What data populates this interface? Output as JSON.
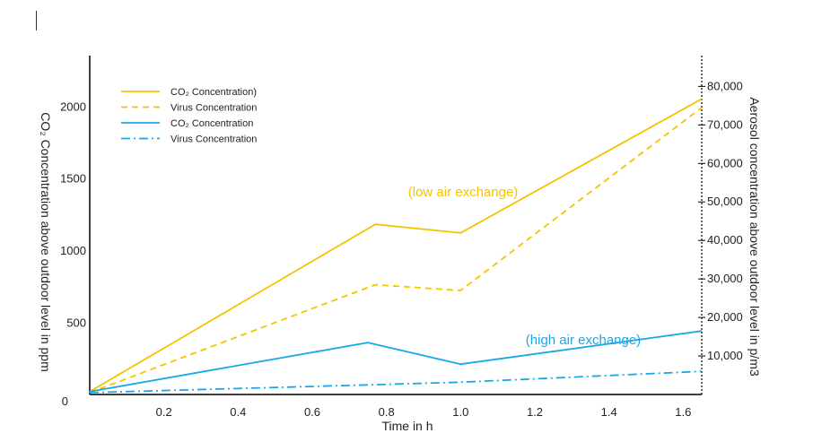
{
  "chart_data": {
    "type": "line",
    "x_ticks": [
      "0.2",
      "0.4",
      "0.6",
      "0.8",
      "1.0",
      "1.2",
      "1.4",
      "1.6"
    ],
    "x_tick_values": [
      0.2,
      0.4,
      0.6,
      0.8,
      1.0,
      1.2,
      1.4,
      1.6
    ],
    "y_left_ticks": [
      "0",
      "500",
      "1000",
      "1500",
      "2000"
    ],
    "y_left_tick_values": [
      0,
      500,
      1000,
      1500,
      2000
    ],
    "y_right_ticks": [
      "10,000",
      "20,000",
      "30,000",
      "40,000",
      "50,000",
      "60,000",
      "70,000",
      "80,000"
    ],
    "y_right_tick_values": [
      10000,
      20000,
      30000,
      40000,
      50000,
      60000,
      70000,
      80000
    ],
    "xlabel": "Time in h",
    "ylabel_left": "CO₂ Concentration above  outdoor level in ppm",
    "ylabel_right": "Aerosol concentration above  outdoor level in p/m3",
    "xlim": [
      0,
      1.65
    ],
    "ylim_left": [
      0,
      2350
    ],
    "ylim_right": [
      0,
      88000
    ],
    "grid": false,
    "legend_position": "top-left",
    "series": [
      {
        "name": "CO₂ Concentration)",
        "axis": "left",
        "style": "solid",
        "color": "#f5c400",
        "x": [
          0,
          0.77,
          1.0,
          1.65
        ],
        "y": [
          20,
          1180,
          1120,
          2050
        ]
      },
      {
        "name": "Virus Concentration",
        "axis": "right",
        "style": "dashed",
        "color": "#f5c400",
        "x": [
          0,
          0.77,
          1.0,
          1.65
        ],
        "y": [
          500,
          28500,
          27000,
          74500
        ]
      },
      {
        "name": "CO₂ Concentration",
        "axis": "left",
        "style": "solid",
        "color": "#1aa7e8",
        "x": [
          0,
          0.75,
          1.0,
          1.65
        ],
        "y": [
          20,
          360,
          210,
          440
        ]
      },
      {
        "name": "Virus Concentration",
        "axis": "right",
        "style": "dashdot",
        "color": "#1aa7e8",
        "x": [
          0,
          0.75,
          1.0,
          1.65
        ],
        "y": [
          500,
          2500,
          3200,
          6000
        ]
      }
    ],
    "annotations": [
      {
        "text": "(low air exchange)",
        "color": "#f5c400"
      },
      {
        "text": "(high air exchange)",
        "color": "#1aa7e8"
      }
    ]
  }
}
